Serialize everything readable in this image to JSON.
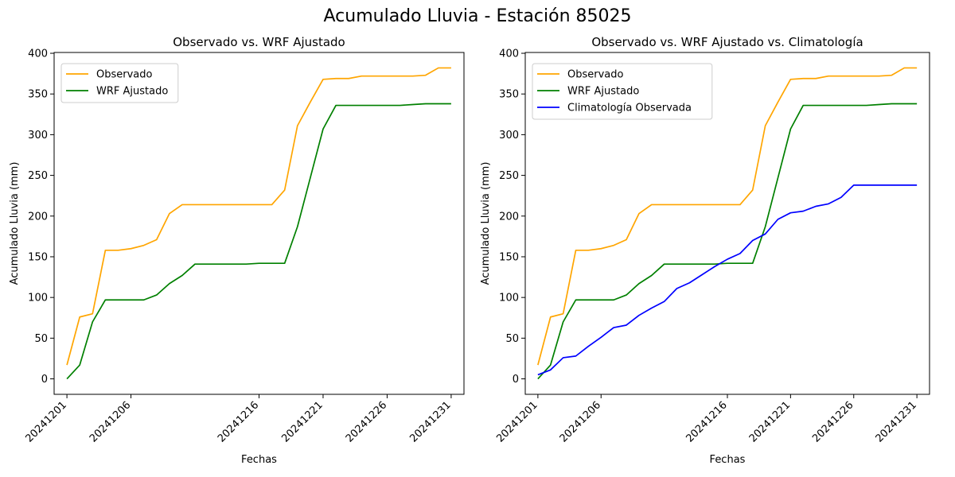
{
  "figure_title": "Acumulado Lluvia - Estación 85025",
  "colors": {
    "observado": "#FFA500",
    "wrf": "#008000",
    "climatologia": "#0000FF"
  },
  "chart_data": [
    {
      "type": "line",
      "title": "Observado vs. WRF Ajustado",
      "xlabel": "Fechas",
      "ylabel": "Acumulado Lluvia (mm)",
      "x": [
        "2024-12-01",
        "2024-12-02",
        "2024-12-03",
        "2024-12-04",
        "2024-12-05",
        "2024-12-06",
        "2024-12-07",
        "2024-12-08",
        "2024-12-09",
        "2024-12-10",
        "2024-12-11",
        "2024-12-12",
        "2024-12-13",
        "2024-12-14",
        "2024-12-15",
        "2024-12-16",
        "2024-12-17",
        "2024-12-18",
        "2024-12-19",
        "2024-12-20",
        "2024-12-21",
        "2024-12-22",
        "2024-12-23",
        "2024-12-24",
        "2024-12-25",
        "2024-12-26",
        "2024-12-27",
        "2024-12-28",
        "2024-12-29",
        "2024-12-30",
        "2024-12-31"
      ],
      "xticks": [
        "20241201",
        "20241206",
        "20241216",
        "20241221",
        "20241226",
        "20241231"
      ],
      "xlim": [
        "2024-11-30",
        "2025-01-01"
      ],
      "yticks": [
        "0",
        "50",
        "100",
        "150",
        "200",
        "250",
        "300",
        "350",
        "400"
      ],
      "ylim": [
        -19,
        401
      ],
      "legend": "top-left",
      "series": [
        {
          "name": "Observado",
          "color": "#FFA500",
          "values": [
            17,
            76,
            80,
            158,
            158,
            160,
            164,
            171,
            203,
            214,
            214,
            214,
            214,
            214,
            214,
            214,
            214,
            232,
            311,
            340,
            368,
            369,
            369,
            372,
            372,
            372,
            372,
            372,
            373,
            382,
            382
          ]
        },
        {
          "name": "WRF Ajustado",
          "color": "#008000",
          "values": [
            0,
            17,
            70,
            97,
            97,
            97,
            97,
            103,
            117,
            127,
            141,
            141,
            141,
            141,
            141,
            142,
            142,
            142,
            187,
            247,
            307,
            336,
            336,
            336,
            336,
            336,
            336,
            337,
            338,
            338,
            338
          ]
        }
      ]
    },
    {
      "type": "line",
      "title": "Observado vs. WRF Ajustado vs. Climatología",
      "xlabel": "Fechas",
      "ylabel": "Acumulado Lluvia (mm)",
      "x": [
        "2024-12-01",
        "2024-12-02",
        "2024-12-03",
        "2024-12-04",
        "2024-12-05",
        "2024-12-06",
        "2024-12-07",
        "2024-12-08",
        "2024-12-09",
        "2024-12-10",
        "2024-12-11",
        "2024-12-12",
        "2024-12-13",
        "2024-12-14",
        "2024-12-15",
        "2024-12-16",
        "2024-12-17",
        "2024-12-18",
        "2024-12-19",
        "2024-12-20",
        "2024-12-21",
        "2024-12-22",
        "2024-12-23",
        "2024-12-24",
        "2024-12-25",
        "2024-12-26",
        "2024-12-27",
        "2024-12-28",
        "2024-12-29",
        "2024-12-30",
        "2024-12-31"
      ],
      "xticks": [
        "20241201",
        "20241206",
        "20241216",
        "20241221",
        "20241226",
        "20241231"
      ],
      "xlim": [
        "2024-11-30",
        "2025-01-01"
      ],
      "yticks": [
        "0",
        "50",
        "100",
        "150",
        "200",
        "250",
        "300",
        "350",
        "400"
      ],
      "ylim": [
        -19,
        401
      ],
      "legend": "top-left",
      "series": [
        {
          "name": "Observado",
          "color": "#FFA500",
          "values": [
            17,
            76,
            80,
            158,
            158,
            160,
            164,
            171,
            203,
            214,
            214,
            214,
            214,
            214,
            214,
            214,
            214,
            232,
            311,
            340,
            368,
            369,
            369,
            372,
            372,
            372,
            372,
            372,
            373,
            382,
            382
          ]
        },
        {
          "name": "WRF Ajustado",
          "color": "#008000",
          "values": [
            0,
            17,
            70,
            97,
            97,
            97,
            97,
            103,
            117,
            127,
            141,
            141,
            141,
            141,
            141,
            142,
            142,
            142,
            187,
            247,
            307,
            336,
            336,
            336,
            336,
            336,
            336,
            337,
            338,
            338,
            338
          ]
        },
        {
          "name": "Climatología Observada",
          "color": "#0000FF",
          "values": [
            5,
            11,
            26,
            28,
            40,
            51,
            63,
            66,
            78,
            87,
            95,
            111,
            118,
            128,
            138,
            147,
            154,
            170,
            178,
            196,
            204,
            206,
            212,
            215,
            223,
            238,
            238,
            238,
            238,
            238,
            238
          ]
        }
      ]
    }
  ]
}
